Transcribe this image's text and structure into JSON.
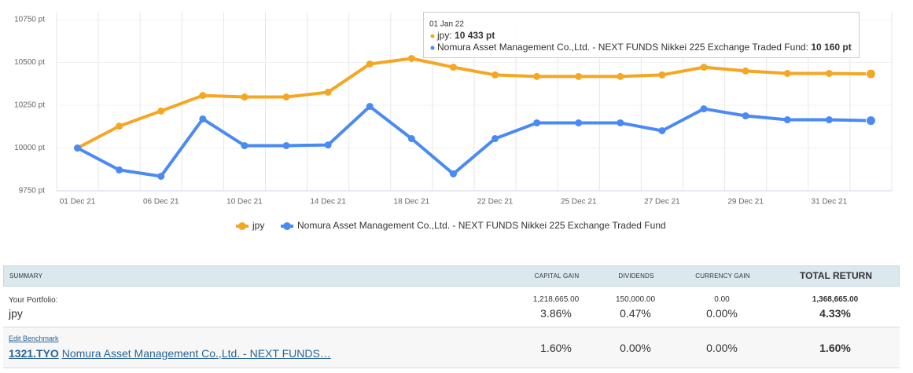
{
  "chart_data": {
    "type": "line",
    "categories": [
      "01 Dec 21",
      null,
      "06 Dec 21",
      null,
      "10 Dec 21",
      null,
      "14 Dec 21",
      null,
      "18 Dec 21",
      null,
      "22 Dec 21",
      null,
      "25 Dec 21",
      null,
      "27 Dec 21",
      null,
      "29 Dec 21",
      null,
      "31 Dec 21",
      null
    ],
    "series": [
      {
        "name": "jpy",
        "color": "#f5a623",
        "values": [
          10000,
          10128,
          10216,
          10307,
          10298,
          10298,
          10326,
          10491,
          10523,
          10472,
          10427,
          10418,
          10418,
          10418,
          10427,
          10472,
          10450,
          10436,
          10436,
          10433
        ]
      },
      {
        "name": "Nomura Asset Management Co.,Ltd. - NEXT FUNDS Nikkei 225 Exchange Traded Fund",
        "color": "#4a8af4",
        "values": [
          10000,
          9872,
          9835,
          10170,
          10014,
          10014,
          10018,
          10243,
          10055,
          9849,
          10055,
          10147,
          10147,
          10147,
          10101,
          10229,
          10188,
          10165,
          10165,
          10160
        ]
      }
    ],
    "ylim": [
      9750,
      10750
    ],
    "yticks": [
      {
        "value": 9750,
        "label": "9750 pt"
      },
      {
        "value": 10000,
        "label": "10000 pt"
      },
      {
        "value": 10250,
        "label": "10250 pt"
      },
      {
        "value": 10500,
        "label": "10500 pt"
      },
      {
        "value": 10750,
        "label": "10750 pt"
      }
    ],
    "grid": true,
    "tooltip": {
      "date": "01 Jan 22",
      "lines": [
        {
          "name": "jpy: ",
          "value": "10 433 pt"
        },
        {
          "name": "Nomura Asset Management Co.,Ltd. - NEXT FUNDS Nikkei 225 Exchange Traded Fund: ",
          "value": "10 160 pt"
        }
      ]
    }
  },
  "table": {
    "header": [
      "SUMMARY",
      "CAPITAL GAIN",
      "DIVIDENDS",
      "CURRENCY GAIN",
      "TOTAL RETURN"
    ],
    "portfolio": {
      "label": "Your Portfolio:",
      "name": "jpy",
      "capital_gain": "1,218,665.00",
      "capital_gain_pct": "3.86%",
      "dividends": "150,000.00",
      "dividends_pct": "0.47%",
      "currency_gain": "0.00",
      "currency_gain_pct": "0.00%",
      "total": "1,368,665.00",
      "total_pct": "4.33%"
    },
    "benchmark": {
      "edit": "Edit Benchmark",
      "ticker": "1321.TYO",
      "name": "Nomura Asset Management Co.,Ltd. - NEXT FUNDS…",
      "capital_gain_pct": "1.60%",
      "dividends_pct": "0.00%",
      "currency_gain_pct": "0.00%",
      "total_pct": "1.60%"
    }
  }
}
